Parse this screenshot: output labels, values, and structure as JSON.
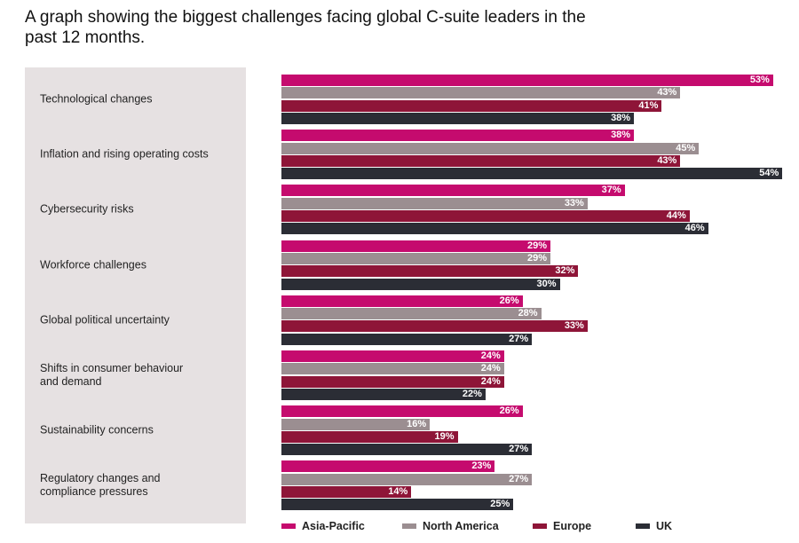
{
  "title": "A graph showing the biggest challenges facing global C-suite leaders in the past 12 months.",
  "chart_data": {
    "type": "bar",
    "orientation": "horizontal",
    "title": "A graph showing the biggest challenges facing global C-suite leaders in the past 12 months.",
    "categories": [
      "Technological changes",
      "Inflation and rising operating costs",
      "Cybersecurity risks",
      "Workforce challenges",
      "Global political uncertainty",
      "Shifts in consumer behaviour\nand demand",
      "Sustainability concerns",
      "Regulatory changes and\ncompliance pressures"
    ],
    "unit": "%",
    "legend": "bottom",
    "grid": false,
    "series": [
      {
        "name": "Asia-Pacific",
        "color": "#c50b6e",
        "values": [
          53,
          38,
          37,
          29,
          26,
          24,
          26,
          23
        ]
      },
      {
        "name": "North America",
        "color": "#9b8e91",
        "values": [
          43,
          45,
          33,
          29,
          28,
          24,
          16,
          27
        ]
      },
      {
        "name": "Europe",
        "color": "#8e1538",
        "values": [
          41,
          43,
          44,
          32,
          33,
          24,
          19,
          14
        ]
      },
      {
        "name": "UK",
        "color": "#2b2d35",
        "values": [
          38,
          54,
          46,
          30,
          27,
          22,
          27,
          25
        ]
      }
    ]
  }
}
